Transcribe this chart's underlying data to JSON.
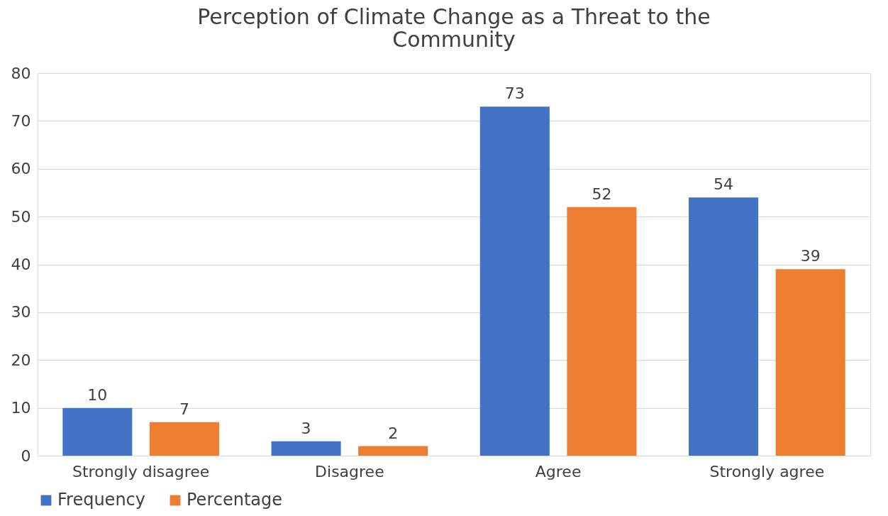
{
  "chart_data": {
    "type": "bar",
    "title": "Perception of Climate Change as a Threat to the Community",
    "categories": [
      "Strongly disagree",
      "Disagree",
      "Agree",
      "Strongly agree"
    ],
    "series": [
      {
        "name": "Frequency",
        "color": "#4472c4",
        "values": [
          10,
          3,
          73,
          54
        ]
      },
      {
        "name": "Percentage",
        "color": "#ed7d31",
        "values": [
          7,
          2,
          52,
          39
        ]
      }
    ],
    "ylim": [
      0,
      80
    ],
    "yticks": [
      0,
      10,
      20,
      30,
      40,
      50,
      60,
      70,
      80
    ],
    "grid": "y",
    "legend": "bottom",
    "data_labels": true
  }
}
